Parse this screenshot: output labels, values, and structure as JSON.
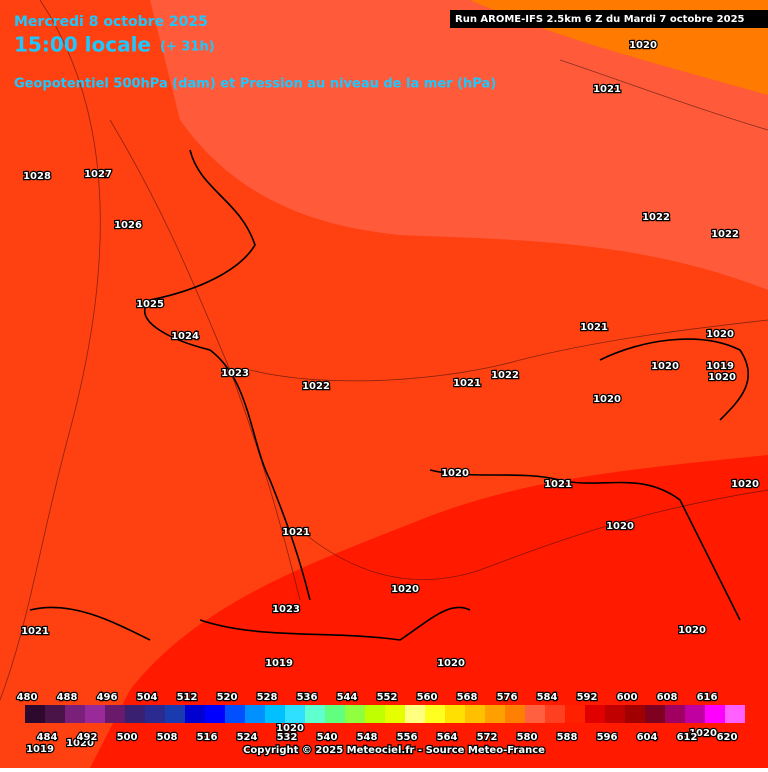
{
  "header": {
    "date": "Mercredi 8 octobre 2025",
    "time": "15:00 locale",
    "lead": "(+ 31h)",
    "run": "Run AROME-IFS 2.5km 6 Z du Mardi 7 octobre 2025",
    "field": "Geopotentiel 500hPa (dam) et Pression au niveau de la mer (hPa)"
  },
  "isobar_labels": [
    1020,
    1021,
    1028,
    1027,
    1026,
    1022,
    1022,
    1025,
    1024,
    1021,
    1020,
    1020,
    1019,
    1020,
    1023,
    1022,
    1021,
    1022,
    1020,
    1020,
    1021,
    1020,
    1020,
    1021,
    1020,
    1023,
    1021,
    1020,
    1019,
    1020,
    1020,
    1019,
    1020,
    1020
  ],
  "colorbar": {
    "top_labels": [
      480,
      488,
      496,
      504,
      512,
      520,
      528,
      536,
      544,
      552,
      560,
      568,
      576,
      584,
      592,
      600,
      608,
      616
    ],
    "bottom_labels": [
      484,
      492,
      500,
      508,
      516,
      524,
      532,
      540,
      548,
      556,
      564,
      572,
      580,
      588,
      596,
      604,
      612,
      620
    ],
    "colors": [
      "#2d0a2d",
      "#4a1448",
      "#7a1f7a",
      "#9a2a9a",
      "#6a1a6a",
      "#3a2070",
      "#2a2a90",
      "#1a3ab0",
      "#0000d0",
      "#0000ff",
      "#0050ff",
      "#0090ff",
      "#00c0ff",
      "#30e0ff",
      "#60ffd0",
      "#60ff80",
      "#90ff40",
      "#c0ff00",
      "#e6ff00",
      "#ffff80",
      "#ffff20",
      "#ffe000",
      "#ffc000",
      "#ffa000",
      "#ff8000",
      "#ff6040",
      "#ff4020",
      "#ff2000",
      "#e00000",
      "#c00000",
      "#a00000",
      "#800020",
      "#a00060",
      "#c000a0",
      "#ff00ff",
      "#ff60ff"
    ]
  },
  "copyright": "Copyright © 2025 Meteociel.fr - Source Meteo-France"
}
